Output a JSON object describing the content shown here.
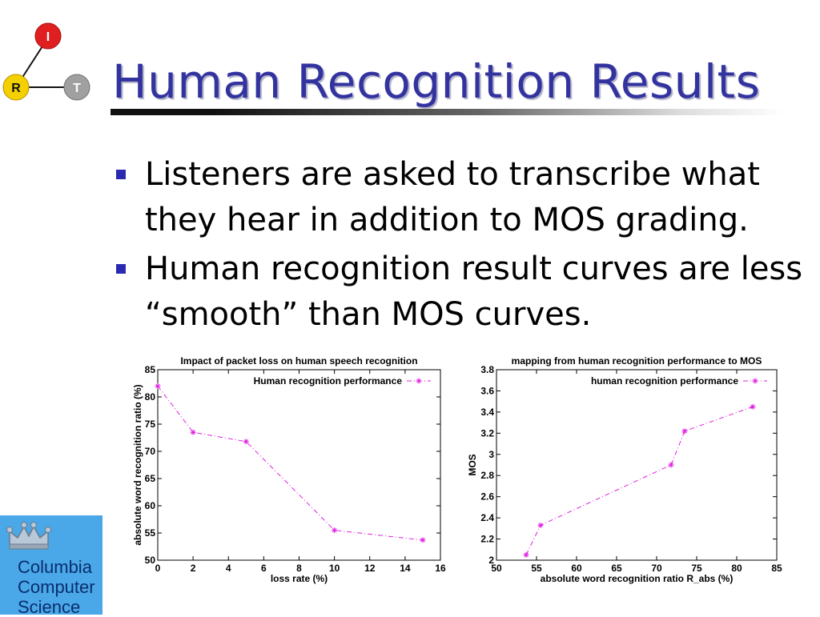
{
  "slide": {
    "logo": {
      "nodes": [
        "I",
        "R",
        "T"
      ]
    },
    "title": "Human Recognition Results",
    "bullets": [
      "Listeners are asked to transcribe what they hear in addition to MOS grading.",
      "Human recognition result curves are less “smooth” than MOS curves."
    ],
    "footer_logo": {
      "lines": [
        "Columbia",
        "Computer",
        "Science"
      ]
    }
  },
  "colors": {
    "title": "#3333a0",
    "bullet": "#2a2ab0",
    "series": "#e020e0",
    "columbia_bg": "#4aa8e8"
  },
  "chart_data": [
    {
      "type": "line",
      "title": "Impact of packet loss on human speech recognition",
      "xlabel": "loss rate (%)",
      "ylabel": "absolute word recognition ratio (%)",
      "xlim": [
        0,
        16
      ],
      "ylim": [
        50,
        85
      ],
      "xticks": [
        0,
        2,
        4,
        6,
        8,
        10,
        12,
        14,
        16
      ],
      "yticks": [
        50,
        55,
        60,
        65,
        70,
        75,
        80,
        85
      ],
      "legend_position": "top-right",
      "series": [
        {
          "name": "Human recognition performance",
          "x": [
            0,
            2,
            5,
            10,
            15
          ],
          "y": [
            82,
            73.5,
            71.8,
            55.5,
            53.7
          ]
        }
      ]
    },
    {
      "type": "line",
      "title": "mapping from human recognition performance to MOS",
      "xlabel": "absolute word recognition ratio R_abs (%)",
      "ylabel": "MOS",
      "xlim": [
        50,
        85
      ],
      "ylim": [
        2,
        3.8
      ],
      "xticks": [
        50,
        55,
        60,
        65,
        70,
        75,
        80,
        85
      ],
      "yticks": [
        2,
        2.2,
        2.4,
        2.6,
        2.8,
        3,
        3.2,
        3.4,
        3.6,
        3.8
      ],
      "legend_position": "top-right",
      "series": [
        {
          "name": "human recognition performance",
          "x": [
            53.7,
            55.5,
            71.8,
            73.5,
            82
          ],
          "y": [
            2.05,
            2.33,
            2.9,
            3.22,
            3.45
          ]
        }
      ]
    }
  ]
}
